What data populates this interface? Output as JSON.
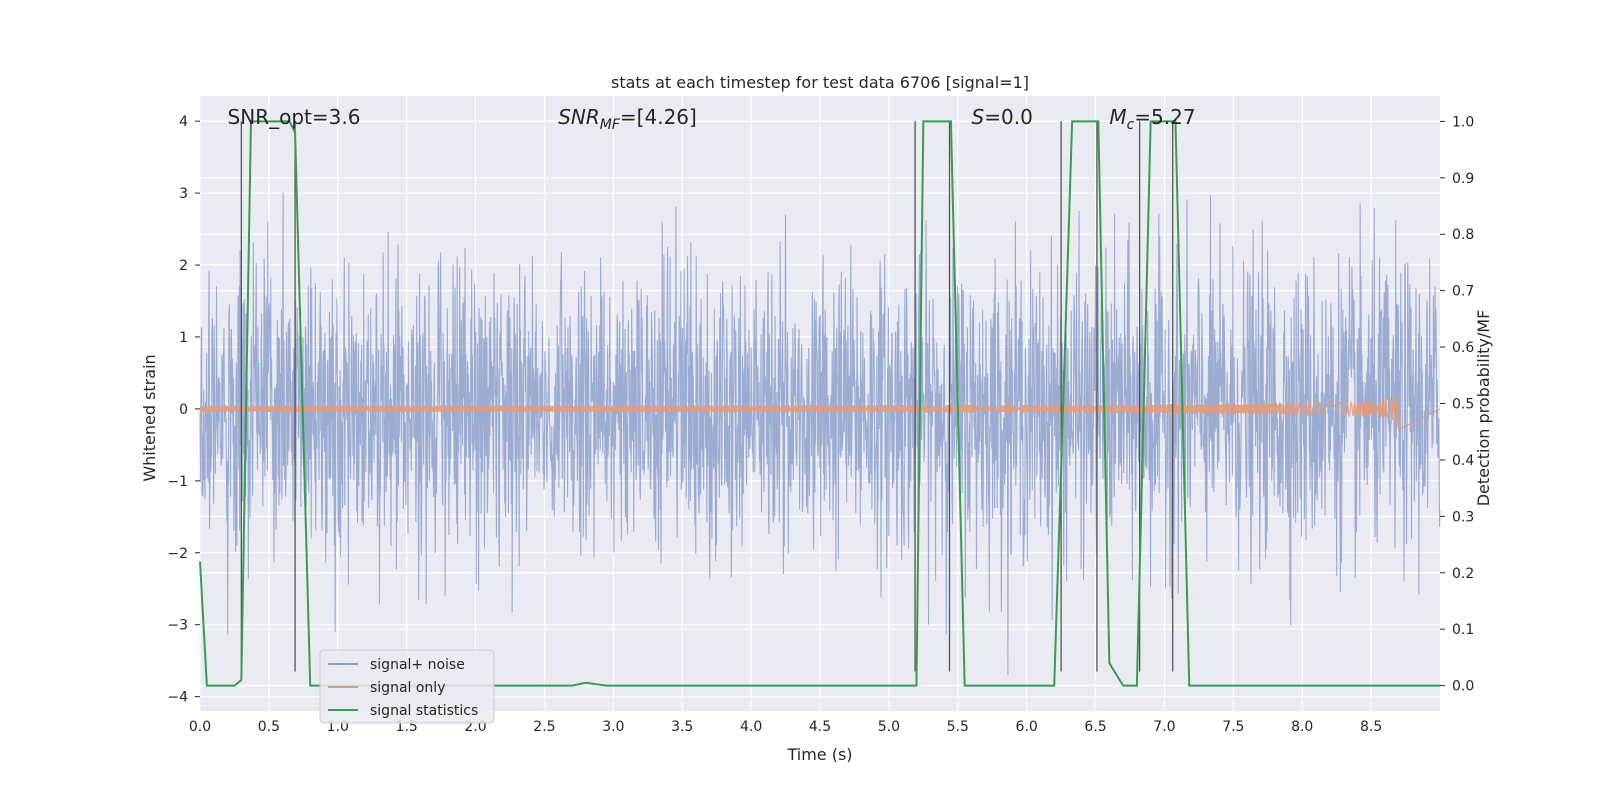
{
  "chart_data": {
    "type": "line",
    "title": "stats at each timestep for test data 6706 [signal=1]",
    "xlabel": "Time (s)",
    "ylabel": "Whitened strain",
    "ylabel_right": "Detection probability/MF",
    "xlim": [
      0.0,
      9.0
    ],
    "ylim": [
      -4.2,
      4.35
    ],
    "ylim_right": [
      -0.045,
      1.045
    ],
    "x_ticks": [
      "0.0",
      "0.5",
      "1.0",
      "1.5",
      "2.0",
      "2.5",
      "3.0",
      "3.5",
      "4.0",
      "4.5",
      "5.0",
      "5.5",
      "6.0",
      "6.5",
      "7.0",
      "7.5",
      "8.0",
      "8.5"
    ],
    "y_ticks": [
      "4",
      "3",
      "2",
      "1",
      "0",
      "−1",
      "−2",
      "−3",
      "−4"
    ],
    "y_ticks_right": [
      "1.0",
      "0.9",
      "0.8",
      "0.7",
      "0.6",
      "0.5",
      "0.4",
      "0.3",
      "0.2",
      "0.1",
      "0.0"
    ],
    "grid": true,
    "legend_position": "lower-left",
    "annotations": [
      {
        "label": "SNR_opt=3.6",
        "x": 0.2,
        "y": 4.0
      },
      {
        "label": "SNR",
        "sub": "MF",
        "rest": "=[4.26]",
        "x": 2.6,
        "y": 4.0,
        "italic": true
      },
      {
        "label": "S",
        "rest": "=0.0",
        "x": 5.6,
        "y": 4.0,
        "italic": true
      },
      {
        "label": "M",
        "sub": "c",
        "rest": "=5.27",
        "x": 6.6,
        "y": 4.0,
        "italic": true
      }
    ],
    "series": [
      {
        "name": "signal+ noise",
        "color": "#8da0cb",
        "kind": "noise",
        "sigma": 1.0,
        "duration": 9.0
      },
      {
        "name": "signal only",
        "color": "#e49a78",
        "kind": "chirp",
        "end_time": 8.7,
        "peak_amplitude": 0.35
      },
      {
        "name": "signal statistics",
        "color": "#3a9c4f",
        "axis": "right",
        "x": [
          0.0,
          0.05,
          0.25,
          0.3,
          0.37,
          0.65,
          0.69,
          0.8,
          2.7,
          2.8,
          2.95,
          4.5,
          5.2,
          5.25,
          5.45,
          5.55,
          6.2,
          6.33,
          6.52,
          6.6,
          6.7,
          6.8,
          6.9,
          7.08,
          7.18,
          9.0
        ],
        "y": [
          0.22,
          0.0,
          0.0,
          0.01,
          1.0,
          1.0,
          0.98,
          0.0,
          0.0,
          0.005,
          0.0,
          0.0,
          0.0,
          1.0,
          1.0,
          0.0,
          0.0,
          1.0,
          1.0,
          0.04,
          0.0,
          0.0,
          1.0,
          1.0,
          0.0,
          0.0
        ]
      }
    ],
    "vertical_lines": [
      0.3,
      0.69,
      5.19,
      5.44,
      6.25,
      6.51,
      6.82,
      7.06
    ],
    "vertical_line_range": [
      -3.65,
      4.0
    ]
  }
}
